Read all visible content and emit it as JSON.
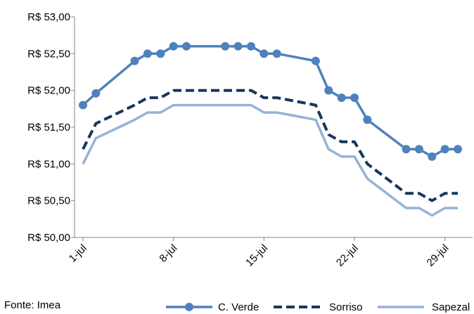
{
  "chart_data": {
    "type": "line",
    "title": "",
    "xlabel": "",
    "ylabel": "",
    "ylim": [
      50.0,
      53.0
    ],
    "y_ticks": [
      "R$ 50,00",
      "R$ 50,50",
      "R$ 51,00",
      "R$ 51,50",
      "R$ 52,00",
      "R$ 52,50",
      "R$ 53,00"
    ],
    "y_tick_values": [
      50.0,
      50.5,
      51.0,
      51.5,
      52.0,
      52.5,
      53.0
    ],
    "x_ticks": [
      "1-jul",
      "8-jul",
      "15-jul",
      "22-jul",
      "29-jul"
    ],
    "x_tick_days": [
      1,
      8,
      15,
      22,
      29
    ],
    "xlim": [
      1,
      30
    ],
    "grid": false,
    "legend_position": "bottom-right",
    "series": [
      {
        "name": "C. Verde",
        "color": "#4f81bd",
        "style": "solid-markers",
        "x": [
          1,
          2,
          5,
          6,
          7,
          8,
          9,
          12,
          13,
          14,
          15,
          16,
          19,
          20,
          21,
          22,
          23,
          26,
          27,
          28,
          29,
          30
        ],
        "values": [
          51.8,
          51.96,
          52.4,
          52.5,
          52.5,
          52.6,
          52.6,
          52.6,
          52.6,
          52.6,
          52.5,
          52.5,
          52.4,
          52.0,
          51.9,
          51.9,
          51.6,
          51.2,
          51.2,
          51.1,
          51.2,
          51.2
        ]
      },
      {
        "name": "Sorriso",
        "color": "#17375e",
        "style": "dashed",
        "x": [
          1,
          2,
          5,
          6,
          7,
          8,
          9,
          12,
          13,
          14,
          15,
          16,
          19,
          20,
          21,
          22,
          23,
          26,
          27,
          28,
          29,
          30
        ],
        "values": [
          51.2,
          51.55,
          51.8,
          51.9,
          51.9,
          52.0,
          52.0,
          52.0,
          52.0,
          52.0,
          51.9,
          51.9,
          51.8,
          51.4,
          51.3,
          51.3,
          51.0,
          50.6,
          50.6,
          50.5,
          50.6,
          50.6
        ]
      },
      {
        "name": "Sapezal",
        "color": "#95b3d7",
        "style": "solid",
        "x": [
          1,
          2,
          5,
          6,
          7,
          8,
          9,
          12,
          13,
          14,
          15,
          16,
          19,
          20,
          21,
          22,
          23,
          26,
          27,
          28,
          29,
          30
        ],
        "values": [
          51.0,
          51.35,
          51.6,
          51.7,
          51.7,
          51.8,
          51.8,
          51.8,
          51.8,
          51.8,
          51.7,
          51.7,
          51.6,
          51.2,
          51.1,
          51.1,
          50.8,
          50.4,
          50.4,
          50.3,
          50.4,
          50.4
        ]
      }
    ]
  },
  "source": "Fonte: Imea"
}
